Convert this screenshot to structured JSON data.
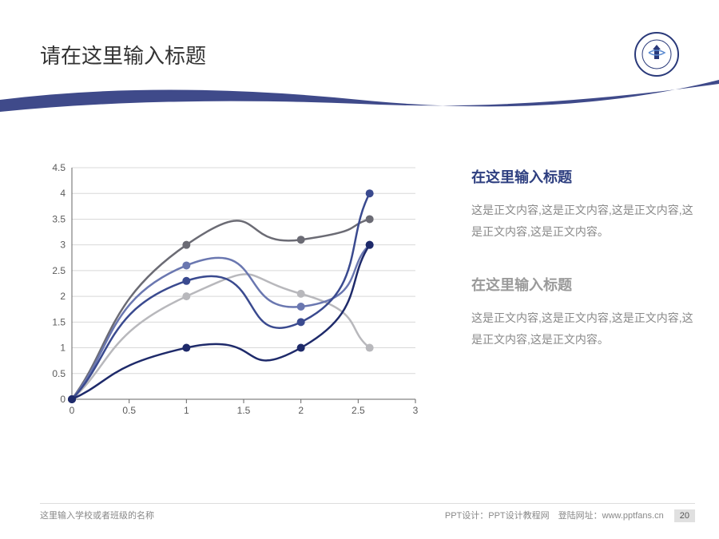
{
  "header": {
    "title": "请在这里输入标题",
    "logo_border_color": "#2a3a7a",
    "logo_inner_color": "#2a3a7a"
  },
  "swoosh": {
    "color": "#3f4a8a"
  },
  "chart": {
    "type": "line",
    "background_color": "#ffffff",
    "grid_color": "#d8d8d8",
    "axis_color": "#666666",
    "xlim": [
      0,
      3
    ],
    "ylim": [
      0,
      4.5
    ],
    "xtick_step": 0.5,
    "ytick_step": 0.5,
    "xticks": [
      "0",
      "0.5",
      "1",
      "1.5",
      "2",
      "2.5",
      "3"
    ],
    "yticks": [
      "0",
      "0.5",
      "1",
      "1.5",
      "2",
      "2.5",
      "3",
      "3.5",
      "4",
      "4.5"
    ],
    "tick_fontsize": 12,
    "tick_color": "#5a5a5a",
    "line_width": 2.5,
    "marker_size": 5,
    "series": [
      {
        "color": "#b8b8bc",
        "marker_color": "#b8b8bc",
        "points": [
          [
            0,
            0
          ],
          [
            1,
            2.0
          ],
          [
            2,
            2.05
          ],
          [
            2.6,
            1.0
          ]
        ]
      },
      {
        "color": "#6b6b74",
        "marker_color": "#6b6b74",
        "points": [
          [
            0,
            0
          ],
          [
            1,
            3.0
          ],
          [
            2,
            3.1
          ],
          [
            2.6,
            3.5
          ]
        ]
      },
      {
        "color": "#6a77b0",
        "marker_color": "#6a77b0",
        "points": [
          [
            0,
            0
          ],
          [
            1,
            2.6
          ],
          [
            2,
            1.8
          ],
          [
            2.6,
            3.0
          ]
        ]
      },
      {
        "color": "#3a4a8f",
        "marker_color": "#3a4a8f",
        "points": [
          [
            0,
            0
          ],
          [
            1,
            2.3
          ],
          [
            2,
            1.5
          ],
          [
            2.6,
            4.0
          ]
        ]
      },
      {
        "color": "#1e2a6a",
        "marker_color": "#1e2a6a",
        "points": [
          [
            0,
            0
          ],
          [
            1,
            1.0
          ],
          [
            2,
            1.0
          ],
          [
            2.6,
            3.0
          ]
        ]
      }
    ]
  },
  "sections": [
    {
      "title": "在这里输入标题",
      "title_color": "#2e3f80",
      "body": "这是正文内容,这是正文内容,这是正文内容,这是正文内容,这是正文内容。"
    },
    {
      "title": "在这里输入标题",
      "title_color": "#9a9a9a",
      "body": "这是正文内容,这是正文内容,这是正文内容,这是正文内容,这是正文内容。"
    }
  ],
  "footer": {
    "left": "这里输入学校或者班级的名称",
    "right": "PPT设计：PPT设计教程网　登陆网址：www.pptfans.cn",
    "page": "20"
  }
}
